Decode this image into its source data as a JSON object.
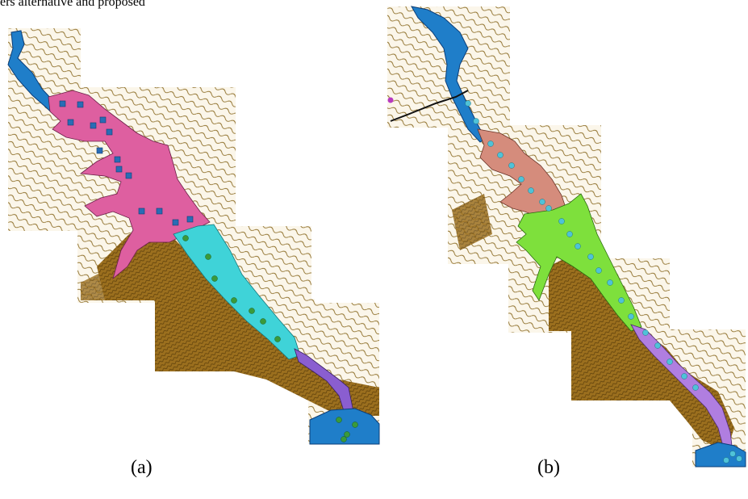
{
  "caption_top": "ers alternative and proposed",
  "panels": {
    "a": {
      "label": "(a)"
    },
    "b": {
      "label": "(b)"
    }
  },
  "colors": {
    "contour": "#7a5a14",
    "terrain_dense": "#8a6418",
    "river_blue": "#1f7ec9",
    "panel_a_zone1": "#de5fa0",
    "panel_a_zone2": "#3fd3d8",
    "panel_a_zone3": "#8a5ed0",
    "panel_a_marker_square": "#2a6cb5",
    "panel_a_marker_dot": "#3a9a3a",
    "panel_b_zone1": "#d58c7c",
    "panel_b_zone2": "#7ee03c",
    "panel_b_zone3": "#b07ee0",
    "panel_b_marker_dot": "#4fc2d8"
  }
}
